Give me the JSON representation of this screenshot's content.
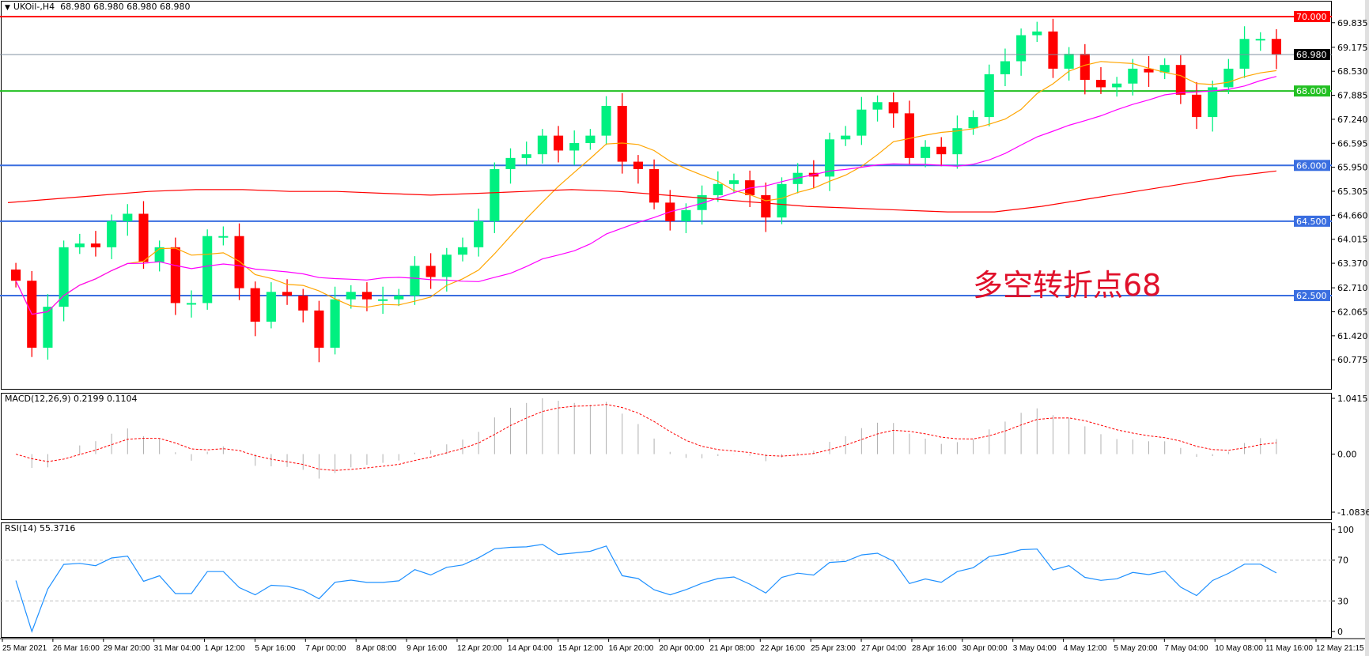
{
  "header": {
    "symbol": "UKOil-,H4",
    "ohlc": "68.980 68.980 68.980 68.980"
  },
  "annotation": "多空转折点68",
  "macd_label": "MACD(12,26,9) 0.2199 0.1104",
  "rsi_label": "RSI(14) 55.3716",
  "colors": {
    "bull": "#00f080",
    "bear": "#ff0000",
    "ma_fast": "#ffa500",
    "ma_mid": "#ff00ff",
    "ma_slow": "#ff0000",
    "macd_hist": "#b0b0b0",
    "macd_signal": "#ff0000",
    "rsi": "#1e90ff",
    "support": "#3a6ee0",
    "pivot": "#22c022",
    "resistance": "#ff0000"
  },
  "chart_data": [
    {
      "type": "candlestick",
      "title": "UKOil-,H4",
      "ylim": [
        60.775,
        70.3
      ],
      "y_ticks": [
        69.835,
        69.175,
        68.53,
        67.885,
        67.24,
        66.595,
        65.95,
        65.305,
        64.66,
        64.015,
        63.37,
        62.71,
        62.065,
        61.42,
        60.775
      ],
      "x_tick_labels": [
        "25 Mar 2021",
        "26 Mar 16:00",
        "29 Mar 20:00",
        "31 Mar 04:00",
        "1 Apr 12:00",
        "5 Apr 16:00",
        "7 Apr 00:00",
        "8 Apr 08:00",
        "9 Apr 16:00",
        "12 Apr 20:00",
        "14 Apr 04:00",
        "15 Apr 12:00",
        "16 Apr 20:00",
        "20 Apr 00:00",
        "21 Apr 08:00",
        "22 Apr 16:00",
        "25 Apr 23:00",
        "27 Apr 04:00",
        "28 Apr 16:00",
        "30 Apr 00:00",
        "3 May 04:00",
        "4 May 12:00",
        "5 May 20:00",
        "7 May 04:00",
        "10 May 08:00",
        "11 May 16:00",
        "12 May 21:15"
      ],
      "closes": [
        62.9,
        61.1,
        62.2,
        63.8,
        63.9,
        63.8,
        64.5,
        64.7,
        63.4,
        63.8,
        62.3,
        62.3,
        64.1,
        64.1,
        62.7,
        61.8,
        62.6,
        62.5,
        62.1,
        61.1,
        62.4,
        62.6,
        62.4,
        62.4,
        62.5,
        63.3,
        63.0,
        63.6,
        63.8,
        64.5,
        65.9,
        66.2,
        66.3,
        66.8,
        66.4,
        66.6,
        66.8,
        67.6,
        66.1,
        65.9,
        65.0,
        64.5,
        64.8,
        65.2,
        65.5,
        65.6,
        65.2,
        64.6,
        65.5,
        65.8,
        65.7,
        66.7,
        66.8,
        67.5,
        67.7,
        67.4,
        66.2,
        66.5,
        66.3,
        67.0,
        67.3,
        68.45,
        68.8,
        69.5,
        69.6,
        68.6,
        69.0,
        68.3,
        68.1,
        68.2,
        68.6,
        68.5,
        68.7,
        67.9,
        67.3,
        68.1,
        68.6,
        69.4,
        69.4,
        68.98
      ],
      "horizontal_levels": [
        {
          "value": 70.0,
          "label": "70.000",
          "role": "resistance"
        },
        {
          "value": 68.0,
          "label": "68.000",
          "role": "pivot"
        },
        {
          "value": 66.0,
          "label": "66.000",
          "role": "support"
        },
        {
          "value": 64.5,
          "label": "64.500",
          "role": "support"
        },
        {
          "value": 62.5,
          "label": "62.500",
          "role": "support"
        }
      ],
      "current_price": {
        "value": 68.98,
        "label": "68.980"
      },
      "slow_ma": [
        65.0,
        65.1,
        65.2,
        65.3,
        65.35,
        65.35,
        65.3,
        65.3,
        65.25,
        65.2,
        65.25,
        65.3,
        65.35,
        65.3,
        65.2,
        65.1,
        65.0,
        64.9,
        64.85,
        64.8,
        64.75,
        64.75,
        64.9,
        65.1,
        65.3,
        65.5,
        65.7,
        65.85
      ]
    },
    {
      "type": "bar+line",
      "title": "MACD(12,26,9) 0.2199 0.1104",
      "ylim": [
        -1.0836,
        1.0415
      ],
      "y_ticks": [
        1.0415,
        0.0,
        -1.0836
      ]
    },
    {
      "type": "line",
      "title": "RSI(14) 55.3716",
      "ylim": [
        0,
        100
      ],
      "y_ticks": [
        100,
        70,
        30,
        0
      ],
      "levels": [
        70,
        30
      ]
    }
  ]
}
